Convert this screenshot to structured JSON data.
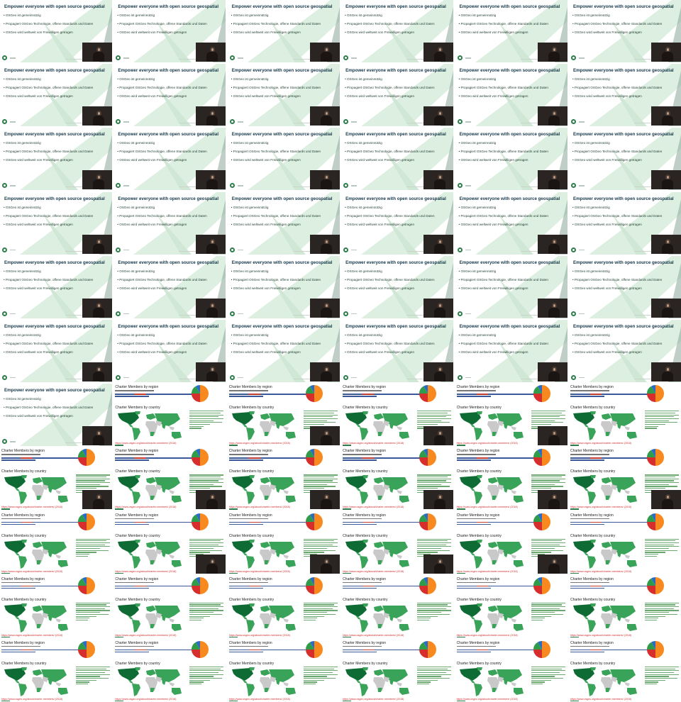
{
  "osgeo_slide": {
    "title": "Empower everyone with open source geospatial",
    "bullets": [
      "• OSGeo ist gemeinnützig",
      "• Propagiert OSGeo Technologie, offene Standards und Daten",
      "• OSGeo wird weltweit von Freiwilligen getragen"
    ]
  },
  "charter_slide": {
    "region_title": "Charter Members by region",
    "country_title": "Charter Members by country",
    "url_text": "https://www.osgeo.org/about/charter-members/ (2018)"
  },
  "colors": {
    "accent_green": "#2e7d4a",
    "map_green": "#3aa35a",
    "map_dark_green": "#0f6b34",
    "url_red": "#d12b2b",
    "pie": [
      "#f7891f",
      "#d62d2d",
      "#2f9c4a",
      "#2a6cc4"
    ]
  },
  "sheet": {
    "columns": 6,
    "rows": 11,
    "frames": [
      "osgeo",
      "osgeo",
      "osgeo",
      "osgeo",
      "osgeo",
      "osgeo",
      "osgeo",
      "osgeo",
      "osgeo",
      "osgeo",
      "osgeo",
      "osgeo",
      "osgeo",
      "osgeo",
      "osgeo",
      "osgeo",
      "osgeo",
      "osgeo",
      "osgeo",
      "osgeo",
      "osgeo",
      "osgeo",
      "osgeo",
      "osgeo",
      "osgeo",
      "osgeo",
      "osgeo",
      "osgeo",
      "osgeo",
      "osgeo",
      "osgeo",
      "osgeo",
      "osgeo",
      "osgeo",
      "osgeo",
      "osgeo",
      "osgeo",
      "charter",
      "charter",
      "charter",
      "charter",
      "charter",
      "charter",
      "charter",
      "charter",
      "charter",
      "charter",
      "charter",
      "charter",
      "charter",
      "charter",
      "charter",
      "charter",
      "charter",
      "charter",
      "charter",
      "charter",
      "charter",
      "charter",
      "charter",
      "charter",
      "charter",
      "charter",
      "charter",
      "charter",
      "charter"
    ],
    "speaker_visible": [
      true,
      true,
      true,
      true,
      true,
      true,
      true,
      true,
      true,
      true,
      true,
      true,
      true,
      true,
      true,
      true,
      true,
      true,
      true,
      true,
      true,
      true,
      true,
      true,
      true,
      true,
      true,
      true,
      true,
      true,
      true,
      true,
      true,
      true,
      true,
      true,
      true,
      false,
      true,
      true,
      true,
      false,
      true,
      true,
      true,
      true,
      true,
      true,
      false,
      true,
      true,
      true,
      true,
      false,
      false,
      false,
      false,
      false,
      false,
      false,
      false,
      false,
      false,
      false,
      false,
      false
    ]
  }
}
